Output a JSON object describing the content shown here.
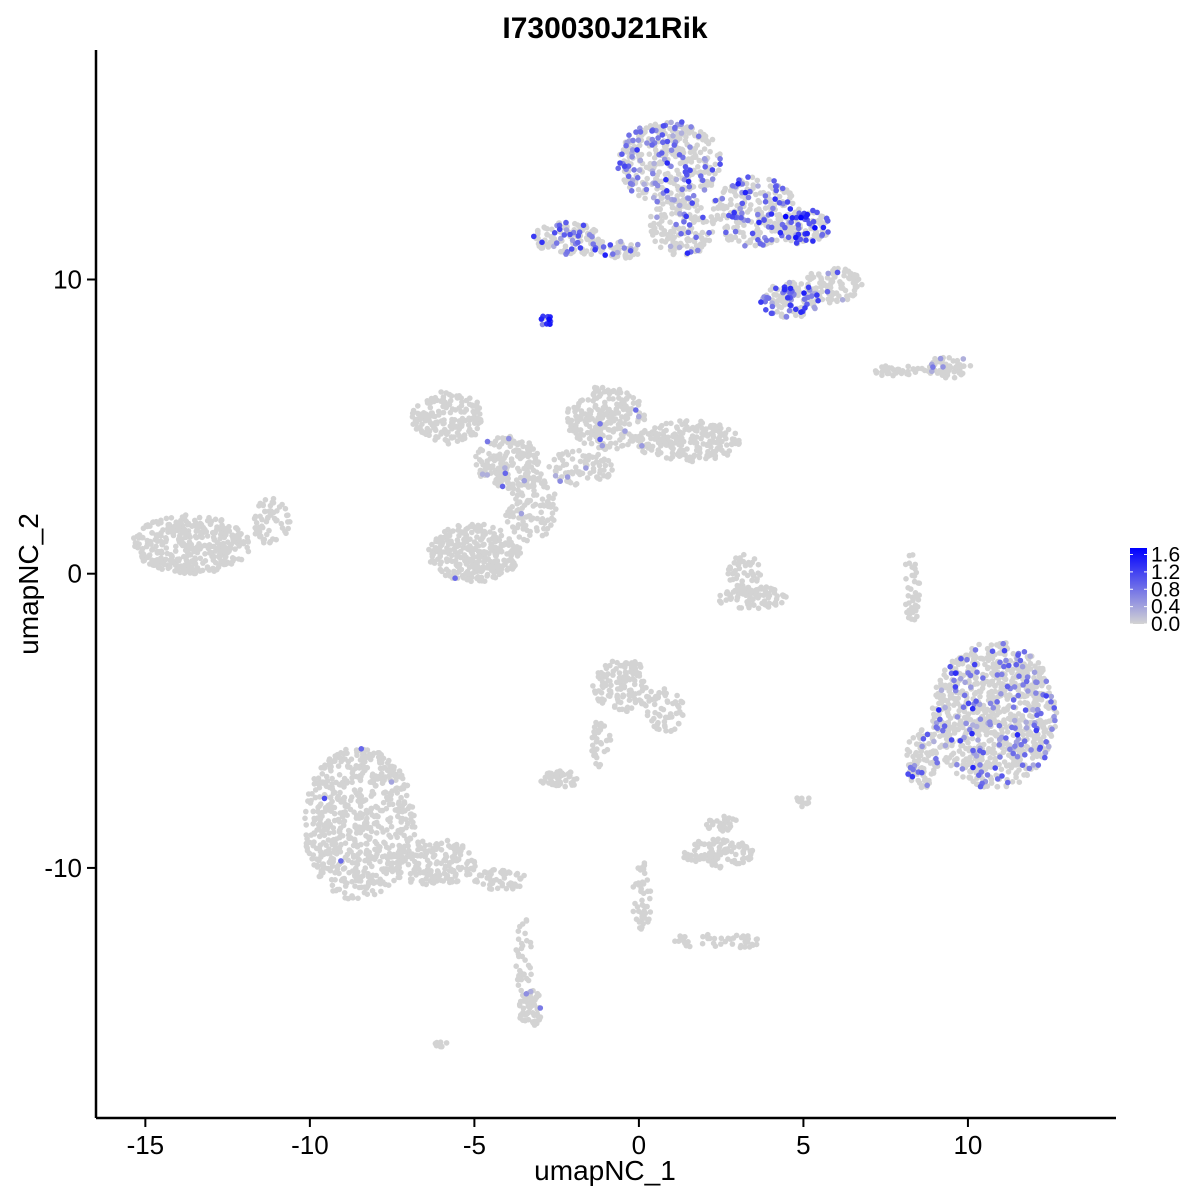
{
  "chart_data": {
    "type": "scatter",
    "title": "I730030J21Rik",
    "xlabel": "umapNC_1",
    "ylabel": "umapNC_2",
    "xlim": [
      -16.5,
      14.5
    ],
    "ylim": [
      -18.5,
      17.8
    ],
    "x_ticks": [
      -15,
      -10,
      -5,
      0,
      5,
      10
    ],
    "x_tick_labels": [
      "-15",
      "-10",
      "-5",
      "0",
      "5",
      "10"
    ],
    "y_ticks": [
      -10,
      0,
      10
    ],
    "y_tick_labels": [
      "-10",
      "0",
      "10"
    ],
    "grid": false,
    "legend": {
      "placement": "right",
      "title": "",
      "values": [
        0.0,
        0.4,
        0.8,
        1.2,
        1.6
      ],
      "labels": [
        "0.0",
        "0.4",
        "0.8",
        "1.2",
        "1.6"
      ],
      "range": [
        0.0,
        1.75
      ]
    },
    "color_low": "#d3d3d3",
    "color_high": "#0000ff",
    "point_color_default": "#d3d3d3",
    "clusters": [
      {
        "cx": -13.6,
        "cy": 1.0,
        "rx": 1.8,
        "ry": 1.0,
        "n": 380,
        "frac": 0.0,
        "mean": 0.0
      },
      {
        "cx": -11.2,
        "cy": 1.8,
        "rx": 0.6,
        "ry": 0.8,
        "n": 60,
        "frac": 0.0,
        "mean": 0.0
      },
      {
        "cx": -8.5,
        "cy": -8.5,
        "rx": 1.7,
        "ry": 2.6,
        "n": 650,
        "frac": 0.002,
        "mean": 0.6
      },
      {
        "cx": -6.3,
        "cy": -9.8,
        "rx": 1.4,
        "ry": 0.8,
        "n": 180,
        "frac": 0.0,
        "mean": 0.0
      },
      {
        "cx": -4.2,
        "cy": -10.4,
        "rx": 0.8,
        "ry": 0.35,
        "n": 50,
        "frac": 0.0,
        "mean": 0.0
      },
      {
        "cx": -3.5,
        "cy": -13.0,
        "rx": 0.25,
        "ry": 1.4,
        "n": 40,
        "frac": 0.0,
        "mean": 0.0
      },
      {
        "cx": -3.3,
        "cy": -14.8,
        "rx": 0.35,
        "ry": 0.7,
        "n": 60,
        "frac": 0.03,
        "mean": 0.6
      },
      {
        "cx": -5.8,
        "cy": 5.3,
        "rx": 1.1,
        "ry": 0.9,
        "n": 180,
        "frac": 0.0,
        "mean": 0.0
      },
      {
        "cx": -4.0,
        "cy": 3.8,
        "rx": 1.0,
        "ry": 0.9,
        "n": 160,
        "frac": 0.04,
        "mean": 0.6
      },
      {
        "cx": -5.0,
        "cy": 0.7,
        "rx": 1.4,
        "ry": 1.0,
        "n": 320,
        "frac": 0.01,
        "mean": 0.6
      },
      {
        "cx": -3.3,
        "cy": 2.3,
        "rx": 0.8,
        "ry": 1.2,
        "n": 120,
        "frac": 0.01,
        "mean": 0.6
      },
      {
        "cx": -1.0,
        "cy": 5.3,
        "rx": 1.2,
        "ry": 1.1,
        "n": 220,
        "frac": 0.02,
        "mean": 0.6
      },
      {
        "cx": 1.5,
        "cy": 4.5,
        "rx": 1.6,
        "ry": 0.7,
        "n": 220,
        "frac": 0.02,
        "mean": 0.6
      },
      {
        "cx": -1.8,
        "cy": 3.6,
        "rx": 1.0,
        "ry": 0.6,
        "n": 80,
        "frac": 0.02,
        "mean": 0.6
      },
      {
        "cx": 0.9,
        "cy": 14.0,
        "rx": 1.6,
        "ry": 1.4,
        "n": 360,
        "frac": 0.25,
        "mean": 0.75
      },
      {
        "cx": 1.3,
        "cy": 11.8,
        "rx": 1.0,
        "ry": 1.0,
        "n": 150,
        "frac": 0.1,
        "mean": 0.7
      },
      {
        "cx": 3.5,
        "cy": 12.3,
        "rx": 1.3,
        "ry": 1.2,
        "n": 240,
        "frac": 0.25,
        "mean": 0.85
      },
      {
        "cx": 5.0,
        "cy": 11.8,
        "rx": 0.8,
        "ry": 0.6,
        "n": 120,
        "frac": 0.4,
        "mean": 1.1
      },
      {
        "cx": 4.6,
        "cy": 9.3,
        "rx": 0.9,
        "ry": 0.6,
        "n": 120,
        "frac": 0.35,
        "mean": 0.8
      },
      {
        "cx": 5.9,
        "cy": 9.8,
        "rx": 0.9,
        "ry": 0.6,
        "n": 100,
        "frac": 0.05,
        "mean": 0.6
      },
      {
        "cx": -2.2,
        "cy": 11.4,
        "rx": 1.0,
        "ry": 0.55,
        "n": 120,
        "frac": 0.25,
        "mean": 0.8
      },
      {
        "cx": -0.8,
        "cy": 11.0,
        "rx": 1.0,
        "ry": 0.3,
        "n": 60,
        "frac": 0.2,
        "mean": 0.7
      },
      {
        "cx": -2.8,
        "cy": 8.6,
        "rx": 0.18,
        "ry": 0.2,
        "n": 14,
        "frac": 0.8,
        "mean": 1.3
      },
      {
        "cx": 9.4,
        "cy": 7.0,
        "rx": 0.7,
        "ry": 0.4,
        "n": 60,
        "frac": 0.05,
        "mean": 0.6
      },
      {
        "cx": 7.8,
        "cy": 6.9,
        "rx": 0.9,
        "ry": 0.18,
        "n": 35,
        "frac": 0.05,
        "mean": 0.6
      },
      {
        "cx": 10.8,
        "cy": -4.8,
        "rx": 1.9,
        "ry": 2.5,
        "n": 950,
        "frac": 0.15,
        "mean": 0.75
      },
      {
        "cx": 8.6,
        "cy": -6.3,
        "rx": 0.5,
        "ry": 1.0,
        "n": 100,
        "frac": 0.15,
        "mean": 0.7
      },
      {
        "cx": 8.3,
        "cy": -0.5,
        "rx": 0.25,
        "ry": 1.3,
        "n": 40,
        "frac": 0.03,
        "mean": 0.6
      },
      {
        "cx": 3.2,
        "cy": 0.0,
        "rx": 0.5,
        "ry": 0.7,
        "n": 50,
        "frac": 0.02,
        "mean": 0.6
      },
      {
        "cx": 3.4,
        "cy": -0.8,
        "rx": 1.1,
        "ry": 0.4,
        "n": 90,
        "frac": 0.0,
        "mean": 0.0
      },
      {
        "cx": -0.5,
        "cy": -3.8,
        "rx": 0.9,
        "ry": 0.9,
        "n": 130,
        "frac": 0.01,
        "mean": 0.6
      },
      {
        "cx": 0.8,
        "cy": -4.6,
        "rx": 0.6,
        "ry": 0.8,
        "n": 60,
        "frac": 0.0,
        "mean": 0.0
      },
      {
        "cx": -1.2,
        "cy": -5.8,
        "rx": 0.35,
        "ry": 0.8,
        "n": 35,
        "frac": 0.0,
        "mean": 0.0
      },
      {
        "cx": -2.4,
        "cy": -7.0,
        "rx": 0.6,
        "ry": 0.3,
        "n": 50,
        "frac": 0.0,
        "mean": 0.0
      },
      {
        "cx": 2.4,
        "cy": -9.5,
        "rx": 1.1,
        "ry": 0.5,
        "n": 100,
        "frac": 0.0,
        "mean": 0.0
      },
      {
        "cx": 2.5,
        "cy": -8.5,
        "rx": 0.5,
        "ry": 0.3,
        "n": 30,
        "frac": 0.0,
        "mean": 0.0
      },
      {
        "cx": 0.1,
        "cy": -11.0,
        "rx": 0.3,
        "ry": 1.2,
        "n": 45,
        "frac": 0.0,
        "mean": 0.0
      },
      {
        "cx": 2.3,
        "cy": -12.5,
        "rx": 1.6,
        "ry": 0.25,
        "n": 45,
        "frac": 0.0,
        "mean": 0.0
      },
      {
        "cx": 5.0,
        "cy": -7.7,
        "rx": 0.25,
        "ry": 0.25,
        "n": 12,
        "frac": 0.0,
        "mean": 0.0
      },
      {
        "cx": -6.0,
        "cy": -16.0,
        "rx": 0.2,
        "ry": 0.15,
        "n": 8,
        "frac": 0.0,
        "mean": 0.0
      }
    ]
  }
}
